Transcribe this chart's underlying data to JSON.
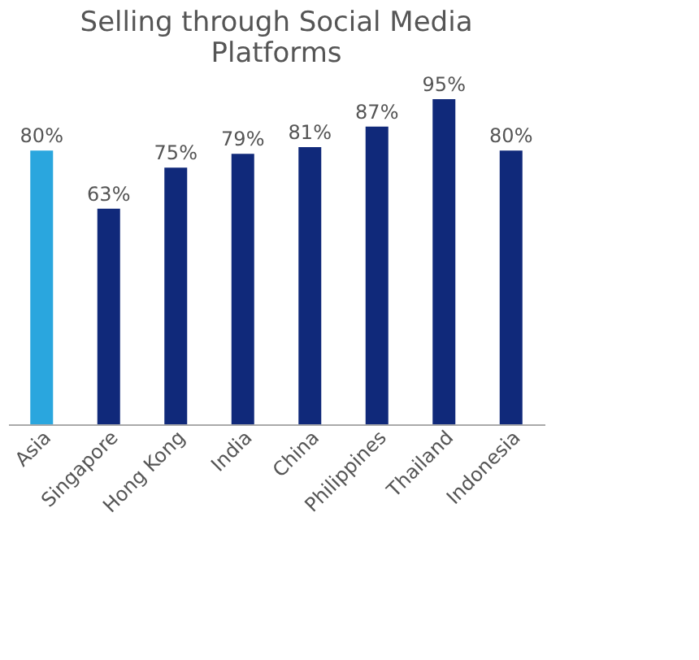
{
  "chart_data": {
    "type": "bar",
    "title": "Selling through Social Media Platforms",
    "categories": [
      "Asia",
      "Singapore",
      "Hong Kong",
      "India",
      "China",
      "Philippines",
      "Thailand",
      "Indonesia"
    ],
    "values": [
      80,
      63,
      75,
      79,
      81,
      87,
      95,
      80
    ],
    "colors": [
      "#2aa6de",
      "#10297a",
      "#10297a",
      "#10297a",
      "#10297a",
      "#10297a",
      "#10297a",
      "#10297a"
    ],
    "value_labels": [
      "80%",
      "63%",
      "75%",
      "79%",
      "81%",
      "87%",
      "95%",
      "80%"
    ],
    "grid": false
  }
}
